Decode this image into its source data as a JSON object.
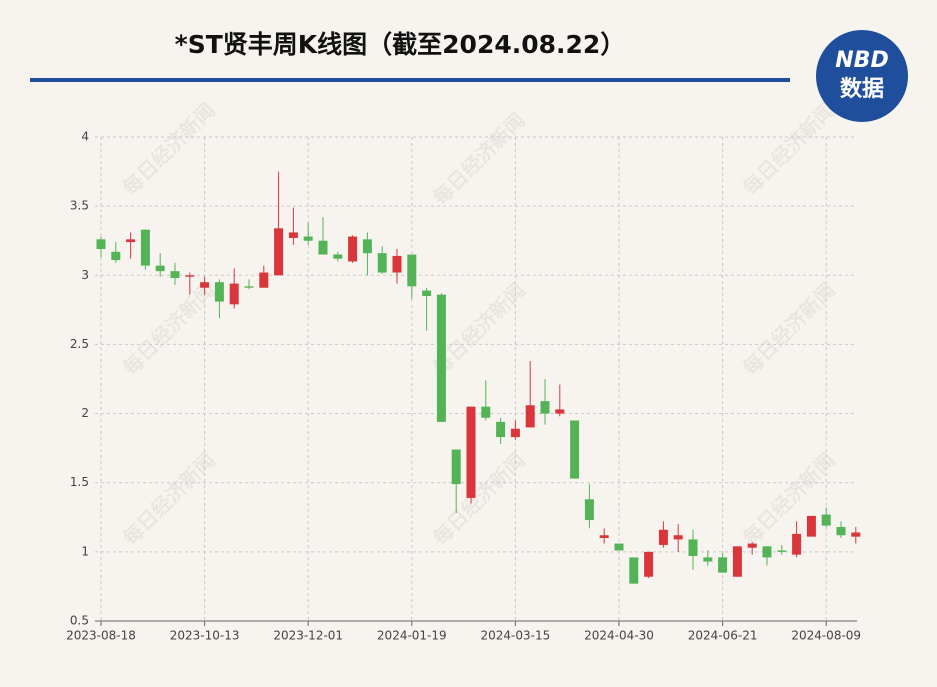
{
  "chart_data": {
    "type": "candlestick",
    "title": "*ST贤丰周K线图（截至2024.08.22）",
    "logo": {
      "top": "NBD",
      "bottom": "数据"
    },
    "watermark": "每日经济新闻",
    "categories": [
      "2023-08-18",
      null,
      null,
      null,
      null,
      null,
      null,
      "2023-10-13",
      null,
      null,
      null,
      null,
      null,
      null,
      "2023-12-01",
      null,
      null,
      null,
      null,
      null,
      null,
      "2024-01-19",
      null,
      null,
      null,
      null,
      null,
      null,
      "2024-03-15",
      null,
      null,
      null,
      null,
      null,
      null,
      "2024-04-30",
      null,
      null,
      null,
      null,
      null,
      null,
      "2024-06-21",
      null,
      null,
      null,
      null,
      null,
      null,
      "2024-08-09",
      null,
      null
    ],
    "open": [
      3.26,
      3.17,
      3.24,
      3.33,
      3.07,
      3.03,
      2.99,
      2.91,
      2.95,
      2.79,
      2.92,
      2.91,
      3.0,
      3.27,
      3.28,
      3.25,
      3.15,
      3.1,
      3.26,
      3.16,
      3.02,
      3.15,
      2.89,
      2.86,
      1.74,
      1.39,
      2.05,
      1.94,
      1.83,
      1.9,
      2.09,
      2.0,
      1.95,
      1.38,
      1.1,
      1.06,
      0.96,
      0.82,
      1.05,
      1.09,
      1.09,
      0.96,
      0.96,
      0.82,
      1.03,
      1.04,
      1.01,
      0.98,
      1.11,
      1.27,
      1.18,
      1.11
    ],
    "high": [
      3.28,
      3.24,
      3.31,
      3.33,
      3.16,
      3.09,
      3.02,
      2.99,
      2.97,
      3.05,
      2.97,
      3.07,
      3.75,
      3.49,
      3.38,
      3.42,
      3.17,
      3.29,
      3.31,
      3.21,
      3.19,
      3.15,
      2.91,
      2.87,
      1.74,
      2.05,
      2.24,
      1.97,
      1.95,
      2.38,
      2.25,
      2.21,
      1.95,
      1.49,
      1.17,
      1.06,
      0.96,
      1.0,
      1.22,
      1.2,
      1.16,
      1.01,
      0.99,
      1.04,
      1.07,
      1.04,
      1.05,
      1.22,
      1.26,
      1.32,
      1.22,
      1.18
    ],
    "low": [
      3.13,
      3.09,
      3.12,
      3.04,
      2.99,
      2.93,
      2.86,
      2.86,
      2.69,
      2.76,
      2.9,
      2.91,
      3.0,
      3.22,
      3.22,
      3.15,
      3.1,
      3.09,
      3.0,
      3.01,
      2.94,
      2.83,
      2.6,
      1.94,
      1.28,
      1.35,
      1.95,
      1.78,
      1.81,
      1.9,
      1.92,
      1.98,
      1.53,
      1.17,
      1.06,
      1.01,
      0.77,
      0.81,
      1.03,
      1.0,
      0.87,
      0.9,
      0.85,
      0.82,
      0.98,
      0.9,
      0.98,
      0.96,
      1.11,
      1.18,
      1.1,
      1.06
    ],
    "close": [
      3.19,
      3.11,
      3.26,
      3.07,
      3.03,
      2.98,
      3.0,
      2.95,
      2.81,
      2.94,
      2.91,
      3.02,
      3.34,
      3.31,
      3.25,
      3.15,
      3.12,
      3.28,
      3.16,
      3.02,
      3.14,
      2.92,
      2.85,
      1.94,
      1.49,
      2.05,
      1.97,
      1.83,
      1.89,
      2.06,
      2.0,
      2.03,
      1.53,
      1.23,
      1.12,
      1.01,
      0.77,
      1.0,
      1.16,
      1.12,
      0.97,
      0.93,
      0.85,
      1.04,
      1.06,
      0.96,
      1.0,
      1.13,
      1.26,
      1.19,
      1.12,
      1.14
    ],
    "up_color": "#d8363b",
    "down_color": "#55b357",
    "ylim": [
      0.5,
      4
    ],
    "yticks": [
      0.5,
      1,
      1.5,
      2,
      2.5,
      3,
      3.5,
      4
    ],
    "grid": true
  }
}
